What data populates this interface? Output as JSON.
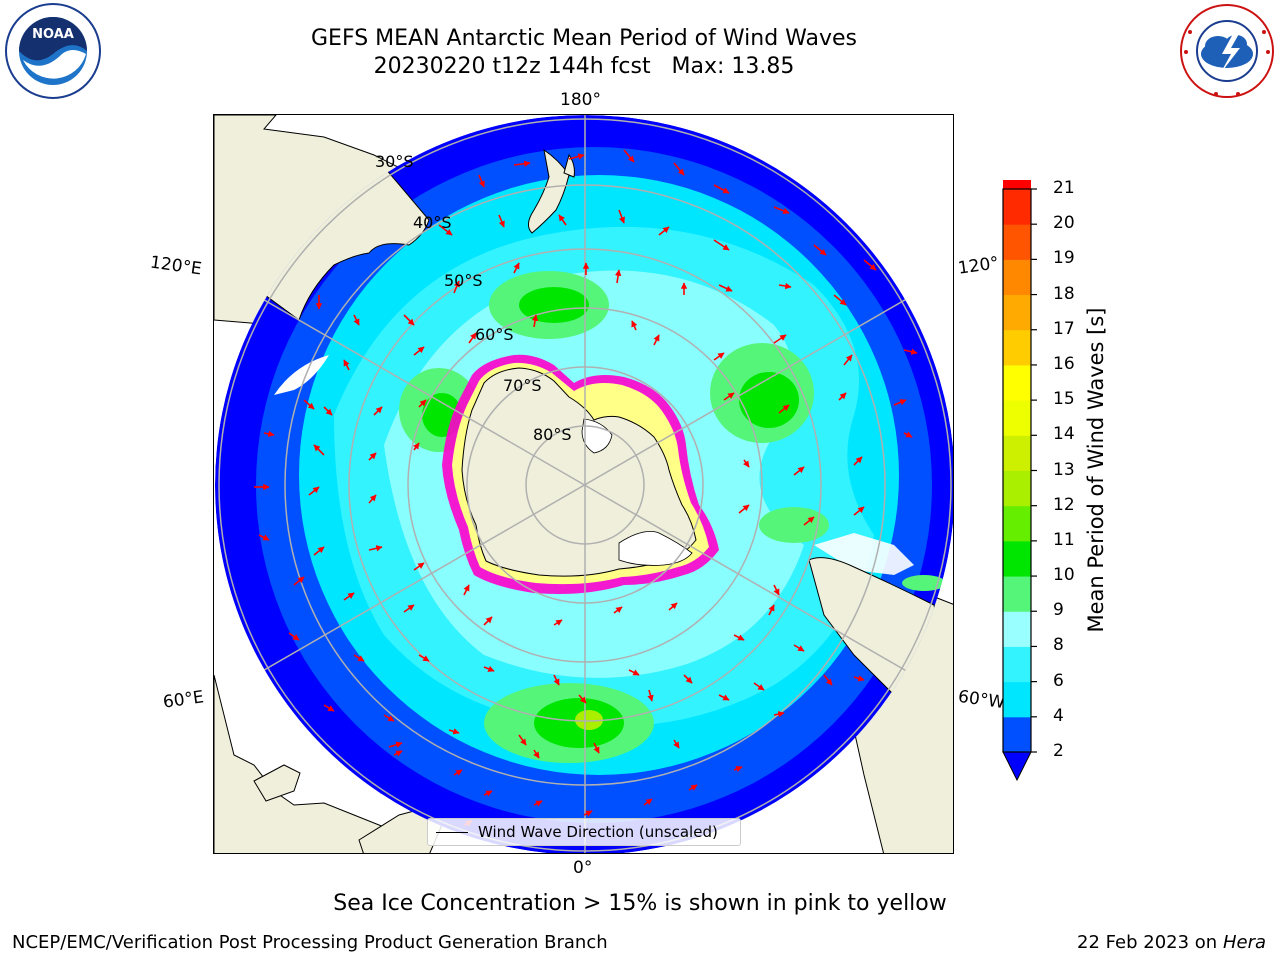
{
  "header": {
    "title_line1": "GEFS MEAN Antarctic Mean Period of Wind Waves",
    "title_line2": "20230220 t12z 144h fcst   Max: 13.85"
  },
  "map": {
    "longitude_labels": {
      "top": "180°",
      "bottom": "0°",
      "upper_left": "120°E",
      "upper_right": "120°",
      "lower_left": "60°E",
      "lower_right": "60°W"
    },
    "latitude_labels": [
      "30°S",
      "40°S",
      "50°S",
      "60°S",
      "70°S",
      "80°S"
    ],
    "legend_label": "Wind Wave Direction (unscaled)"
  },
  "colorbar": {
    "title": "Mean Period of Wind Waves [s]",
    "ticks": [
      "2",
      "4",
      "6",
      "8",
      "9",
      "10",
      "11",
      "12",
      "13",
      "14",
      "15",
      "16",
      "17",
      "18",
      "19",
      "20",
      "21"
    ],
    "colors": [
      "#0050ff",
      "#00e6ff",
      "#33f3ff",
      "#99ffff",
      "#55f57a",
      "#00e600",
      "#66ee00",
      "#aaee00",
      "#ccf000",
      "#eeff00",
      "#ffff00",
      "#ffcc00",
      "#ffaa00",
      "#ff8800",
      "#ff5500",
      "#ff2a00",
      "#ff0000"
    ],
    "under_color": "#0000ff"
  },
  "footer": {
    "note": "Sea Ice Concentration > 15% is shown in pink to yellow",
    "left": "NCEP/EMC/Verification Post Processing Product Generation Branch",
    "right_date": "22 Feb 2023 on",
    "right_machine": "Hera"
  },
  "logos": {
    "noaa": "NOAA",
    "nws": "NATIONAL WEATHER SERVICE"
  }
}
